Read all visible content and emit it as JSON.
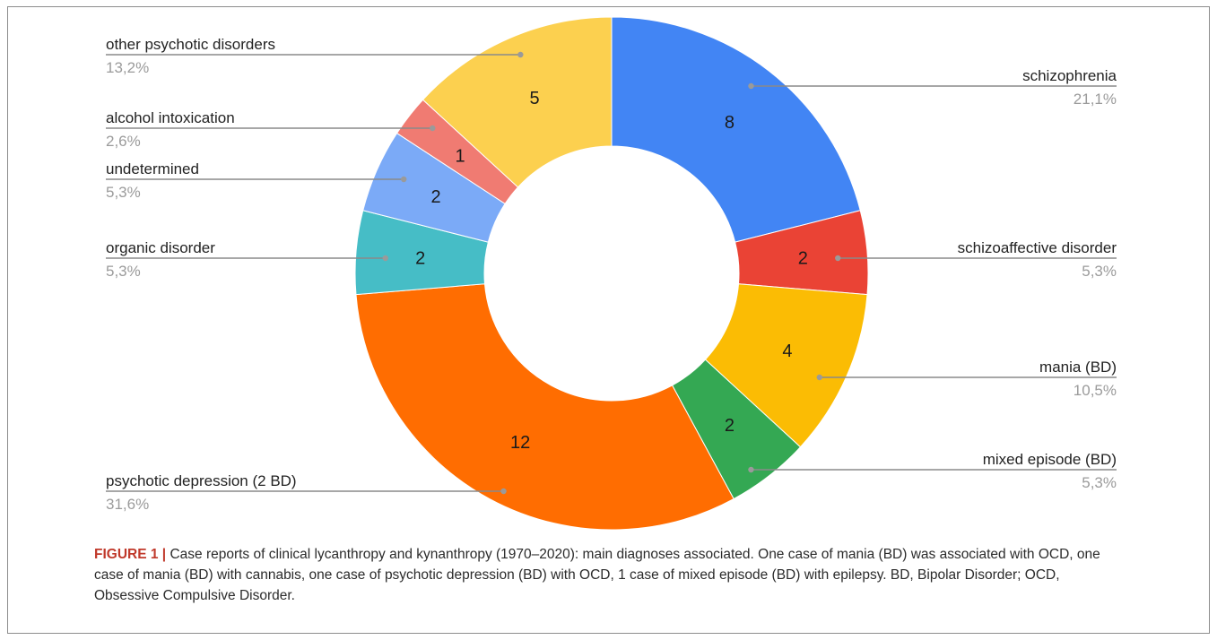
{
  "chart_data": {
    "type": "pie",
    "donut": true,
    "slices": [
      {
        "label": "schizophrenia",
        "value": 8,
        "percent": "21,1%",
        "color": "#4285f4"
      },
      {
        "label": "schizoaffective disorder",
        "value": 2,
        "percent": "5,3%",
        "color": "#ea4335"
      },
      {
        "label": "mania (BD)",
        "value": 4,
        "percent": "10,5%",
        "color": "#fbbc04"
      },
      {
        "label": "mixed episode (BD)",
        "value": 2,
        "percent": "5,3%",
        "color": "#34a853"
      },
      {
        "label": "psychotic depression (2 BD)",
        "value": 12,
        "percent": "31,6%",
        "color": "#ff6d01"
      },
      {
        "label": "organic disorder",
        "value": 2,
        "percent": "5,3%",
        "color": "#46bdc6"
      },
      {
        "label": "undetermined",
        "value": 2,
        "percent": "5,3%",
        "color": "#7baaf7"
      },
      {
        "label": "alcohol intoxication",
        "value": 1,
        "percent": "2,6%",
        "color": "#f07b72"
      },
      {
        "label": "other psychotic disorders",
        "value": 5,
        "percent": "13,2%",
        "color": "#fcd04f"
      }
    ]
  },
  "caption": {
    "lead": "FIGURE 1 |",
    "text": " Case reports of clinical lycanthropy and kynanthropy (1970–2020): main diagnoses associated. One case of mania (BD) was associated with OCD, one case of mania (BD) with cannabis, one case of psychotic depression (BD) with OCD, 1 case of mixed episode (BD) with epilepsy. BD, Bipolar Disorder; OCD, Obsessive Compulsive Disorder."
  }
}
